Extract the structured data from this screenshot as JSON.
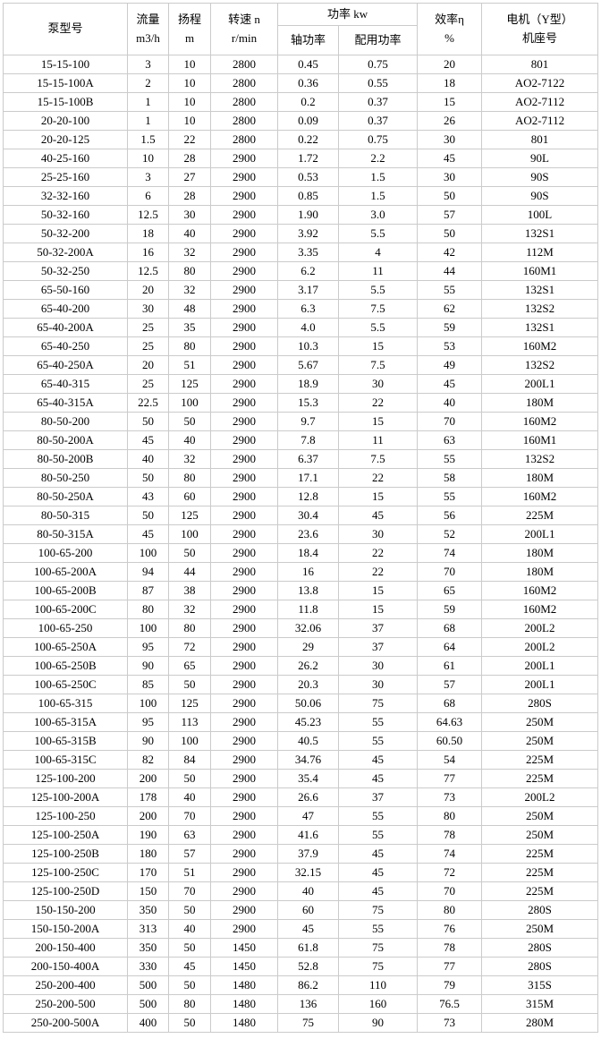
{
  "table": {
    "header": {
      "pump_model": "泵型号",
      "flow_line1": "流量",
      "flow_line2": "m3/h",
      "head_line1": "扬程",
      "head_line2": "m",
      "speed_line1": "转速  n",
      "speed_line2": "r/min",
      "power_group": "功率  kw",
      "shaft_power": "轴功率",
      "rated_power": "配用功率",
      "efficiency_line1": "效率η",
      "efficiency_line2": "%",
      "motor_line1": "电机（Y型）",
      "motor_line2": "机座号"
    },
    "columns": [
      "pump_model",
      "flow_m3h",
      "head_m",
      "speed_rpm",
      "shaft_power_kw",
      "rated_power_kw",
      "efficiency_pct",
      "motor_frame"
    ],
    "rows": [
      [
        "15-15-100",
        "3",
        "10",
        "2800",
        "0.45",
        "0.75",
        "20",
        "801"
      ],
      [
        "15-15-100A",
        "2",
        "10",
        "2800",
        "0.36",
        "0.55",
        "18",
        "AO2-7122"
      ],
      [
        "15-15-100B",
        "1",
        "10",
        "2800",
        "0.2",
        "0.37",
        "15",
        "AO2-7112"
      ],
      [
        "20-20-100",
        "1",
        "10",
        "2800",
        "0.09",
        "0.37",
        "26",
        "AO2-7112"
      ],
      [
        "20-20-125",
        "1.5",
        "22",
        "2800",
        "0.22",
        "0.75",
        "30",
        "801"
      ],
      [
        "40-25-160",
        "10",
        "28",
        "2900",
        "1.72",
        "2.2",
        "45",
        "90L"
      ],
      [
        "25-25-160",
        "3",
        "27",
        "2900",
        "0.53",
        "1.5",
        "30",
        "90S"
      ],
      [
        "32-32-160",
        "6",
        "28",
        "2900",
        "0.85",
        "1.5",
        "50",
        "90S"
      ],
      [
        "50-32-160",
        "12.5",
        "30",
        "2900",
        "1.90",
        "3.0",
        "57",
        "100L"
      ],
      [
        "50-32-200",
        "18",
        "40",
        "2900",
        "3.92",
        "5.5",
        "50",
        "132S1"
      ],
      [
        "50-32-200A",
        "16",
        "32",
        "2900",
        "3.35",
        "4",
        "42",
        "112M"
      ],
      [
        "50-32-250",
        "12.5",
        "80",
        "2900",
        "6.2",
        "11",
        "44",
        "160M1"
      ],
      [
        "65-50-160",
        "20",
        "32",
        "2900",
        "3.17",
        "5.5",
        "55",
        "132S1"
      ],
      [
        "65-40-200",
        "30",
        "48",
        "2900",
        "6.3",
        "7.5",
        "62",
        "132S2"
      ],
      [
        "65-40-200A",
        "25",
        "35",
        "2900",
        "4.0",
        "5.5",
        "59",
        "132S1"
      ],
      [
        "65-40-250",
        "25",
        "80",
        "2900",
        "10.3",
        "15",
        "53",
        "160M2"
      ],
      [
        "65-40-250A",
        "20",
        "51",
        "2900",
        "5.67",
        "7.5",
        "49",
        "132S2"
      ],
      [
        "65-40-315",
        "25",
        "125",
        "2900",
        "18.9",
        "30",
        "45",
        "200L1"
      ],
      [
        "65-40-315A",
        "22.5",
        "100",
        "2900",
        "15.3",
        "22",
        "40",
        "180M"
      ],
      [
        "80-50-200",
        "50",
        "50",
        "2900",
        "9.7",
        "15",
        "70",
        "160M2"
      ],
      [
        "80-50-200A",
        "45",
        "40",
        "2900",
        "7.8",
        "11",
        "63",
        "160M1"
      ],
      [
        "80-50-200B",
        "40",
        "32",
        "2900",
        "6.37",
        "7.5",
        "55",
        "132S2"
      ],
      [
        "80-50-250",
        "50",
        "80",
        "2900",
        "17.1",
        "22",
        "58",
        "180M"
      ],
      [
        "80-50-250A",
        "43",
        "60",
        "2900",
        "12.8",
        "15",
        "55",
        "160M2"
      ],
      [
        "80-50-315",
        "50",
        "125",
        "2900",
        "30.4",
        "45",
        "56",
        "225M"
      ],
      [
        "80-50-315A",
        "45",
        "100",
        "2900",
        "23.6",
        "30",
        "52",
        "200L1"
      ],
      [
        "100-65-200",
        "100",
        "50",
        "2900",
        "18.4",
        "22",
        "74",
        "180M"
      ],
      [
        "100-65-200A",
        "94",
        "44",
        "2900",
        "16",
        "22",
        "70",
        "180M"
      ],
      [
        "100-65-200B",
        "87",
        "38",
        "2900",
        "13.8",
        "15",
        "65",
        "160M2"
      ],
      [
        "100-65-200C",
        "80",
        "32",
        "2900",
        "11.8",
        "15",
        "59",
        "160M2"
      ],
      [
        "100-65-250",
        "100",
        "80",
        "2900",
        "32.06",
        "37",
        "68",
        "200L2"
      ],
      [
        "100-65-250A",
        "95",
        "72",
        "2900",
        "29",
        "37",
        "64",
        "200L2"
      ],
      [
        "100-65-250B",
        "90",
        "65",
        "2900",
        "26.2",
        "30",
        "61",
        "200L1"
      ],
      [
        "100-65-250C",
        "85",
        "50",
        "2900",
        "20.3",
        "30",
        "57",
        "200L1"
      ],
      [
        "100-65-315",
        "100",
        "125",
        "2900",
        "50.06",
        "75",
        "68",
        "280S"
      ],
      [
        "100-65-315A",
        "95",
        "113",
        "2900",
        "45.23",
        "55",
        "64.63",
        "250M"
      ],
      [
        "100-65-315B",
        "90",
        "100",
        "2900",
        "40.5",
        "55",
        "60.50",
        "250M"
      ],
      [
        "100-65-315C",
        "82",
        "84",
        "2900",
        "34.76",
        "45",
        "54",
        "225M"
      ],
      [
        "125-100-200",
        "200",
        "50",
        "2900",
        "35.4",
        "45",
        "77",
        "225M"
      ],
      [
        "125-100-200A",
        "178",
        "40",
        "2900",
        "26.6",
        "37",
        "73",
        "200L2"
      ],
      [
        "125-100-250",
        "200",
        "70",
        "2900",
        "47",
        "55",
        "80",
        "250M"
      ],
      [
        "125-100-250A",
        "190",
        "63",
        "2900",
        "41.6",
        "55",
        "78",
        "250M"
      ],
      [
        "125-100-250B",
        "180",
        "57",
        "2900",
        "37.9",
        "45",
        "74",
        "225M"
      ],
      [
        "125-100-250C",
        "170",
        "51",
        "2900",
        "32.15",
        "45",
        "72",
        "225M"
      ],
      [
        "125-100-250D",
        "150",
        "70",
        "2900",
        "40",
        "45",
        "70",
        "225M"
      ],
      [
        "150-150-200",
        "350",
        "50",
        "2900",
        "60",
        "75",
        "80",
        "280S"
      ],
      [
        "150-150-200A",
        "313",
        "40",
        "2900",
        "45",
        "55",
        "76",
        "250M"
      ],
      [
        "200-150-400",
        "350",
        "50",
        "1450",
        "61.8",
        "75",
        "78",
        "280S"
      ],
      [
        "200-150-400A",
        "330",
        "45",
        "1450",
        "52.8",
        "75",
        "77",
        "280S"
      ],
      [
        "250-200-400",
        "500",
        "50",
        "1480",
        "86.2",
        "110",
        "79",
        "315S"
      ],
      [
        "250-200-500",
        "500",
        "80",
        "1480",
        "136",
        "160",
        "76.5",
        "315M"
      ],
      [
        "250-200-500A",
        "400",
        "50",
        "1480",
        "75",
        "90",
        "73",
        "280M"
      ]
    ]
  },
  "colors": {
    "border": "#cbcbcb",
    "text": "#000000",
    "background": "#ffffff"
  }
}
